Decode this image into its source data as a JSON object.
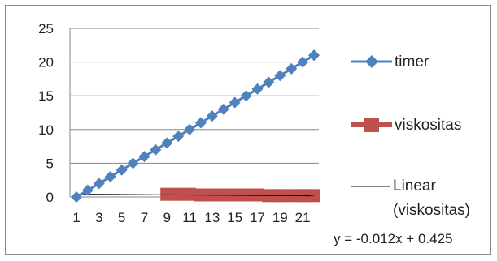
{
  "chart_data": {
    "type": "line",
    "title": "",
    "xlabel": "",
    "ylabel": "",
    "ylim": [
      0,
      25
    ],
    "y_ticks": [
      "0",
      "5",
      "10",
      "15",
      "20",
      "25"
    ],
    "x_tick_labels": [
      "1",
      "3",
      "5",
      "7",
      "9",
      "11",
      "13",
      "15",
      "17",
      "19",
      "21"
    ],
    "x": [
      1,
      2,
      3,
      4,
      5,
      6,
      7,
      8,
      9,
      10,
      11,
      12,
      13,
      14,
      15,
      16,
      17,
      18,
      19,
      20,
      21,
      22
    ],
    "grid": "horizontal",
    "legend_position": "right",
    "series": [
      {
        "name": "timer",
        "color": "#4f81bd",
        "marker": "diamond",
        "values": [
          0,
          1,
          2,
          3,
          4,
          5,
          6,
          7,
          8,
          9,
          10,
          11,
          12,
          13,
          14,
          15,
          16,
          17,
          18,
          19,
          20,
          21
        ]
      },
      {
        "name": "viskositas",
        "color": "#c0504d",
        "marker": "square",
        "values": [
          null,
          null,
          null,
          null,
          null,
          null,
          null,
          null,
          0.4,
          0.4,
          0.4,
          0.3,
          0.3,
          0.3,
          0.3,
          0.3,
          0.3,
          0.2,
          0.2,
          0.2,
          0.2,
          0.2
        ]
      }
    ],
    "trendline": {
      "name": "Linear\n(viskositas)",
      "label_lines": [
        "Linear",
        "(viskositas)"
      ],
      "series": "viskositas",
      "color": "#000000",
      "slope": -0.012,
      "intercept": 0.425,
      "equation": "y = -0.012x + 0.425"
    }
  }
}
